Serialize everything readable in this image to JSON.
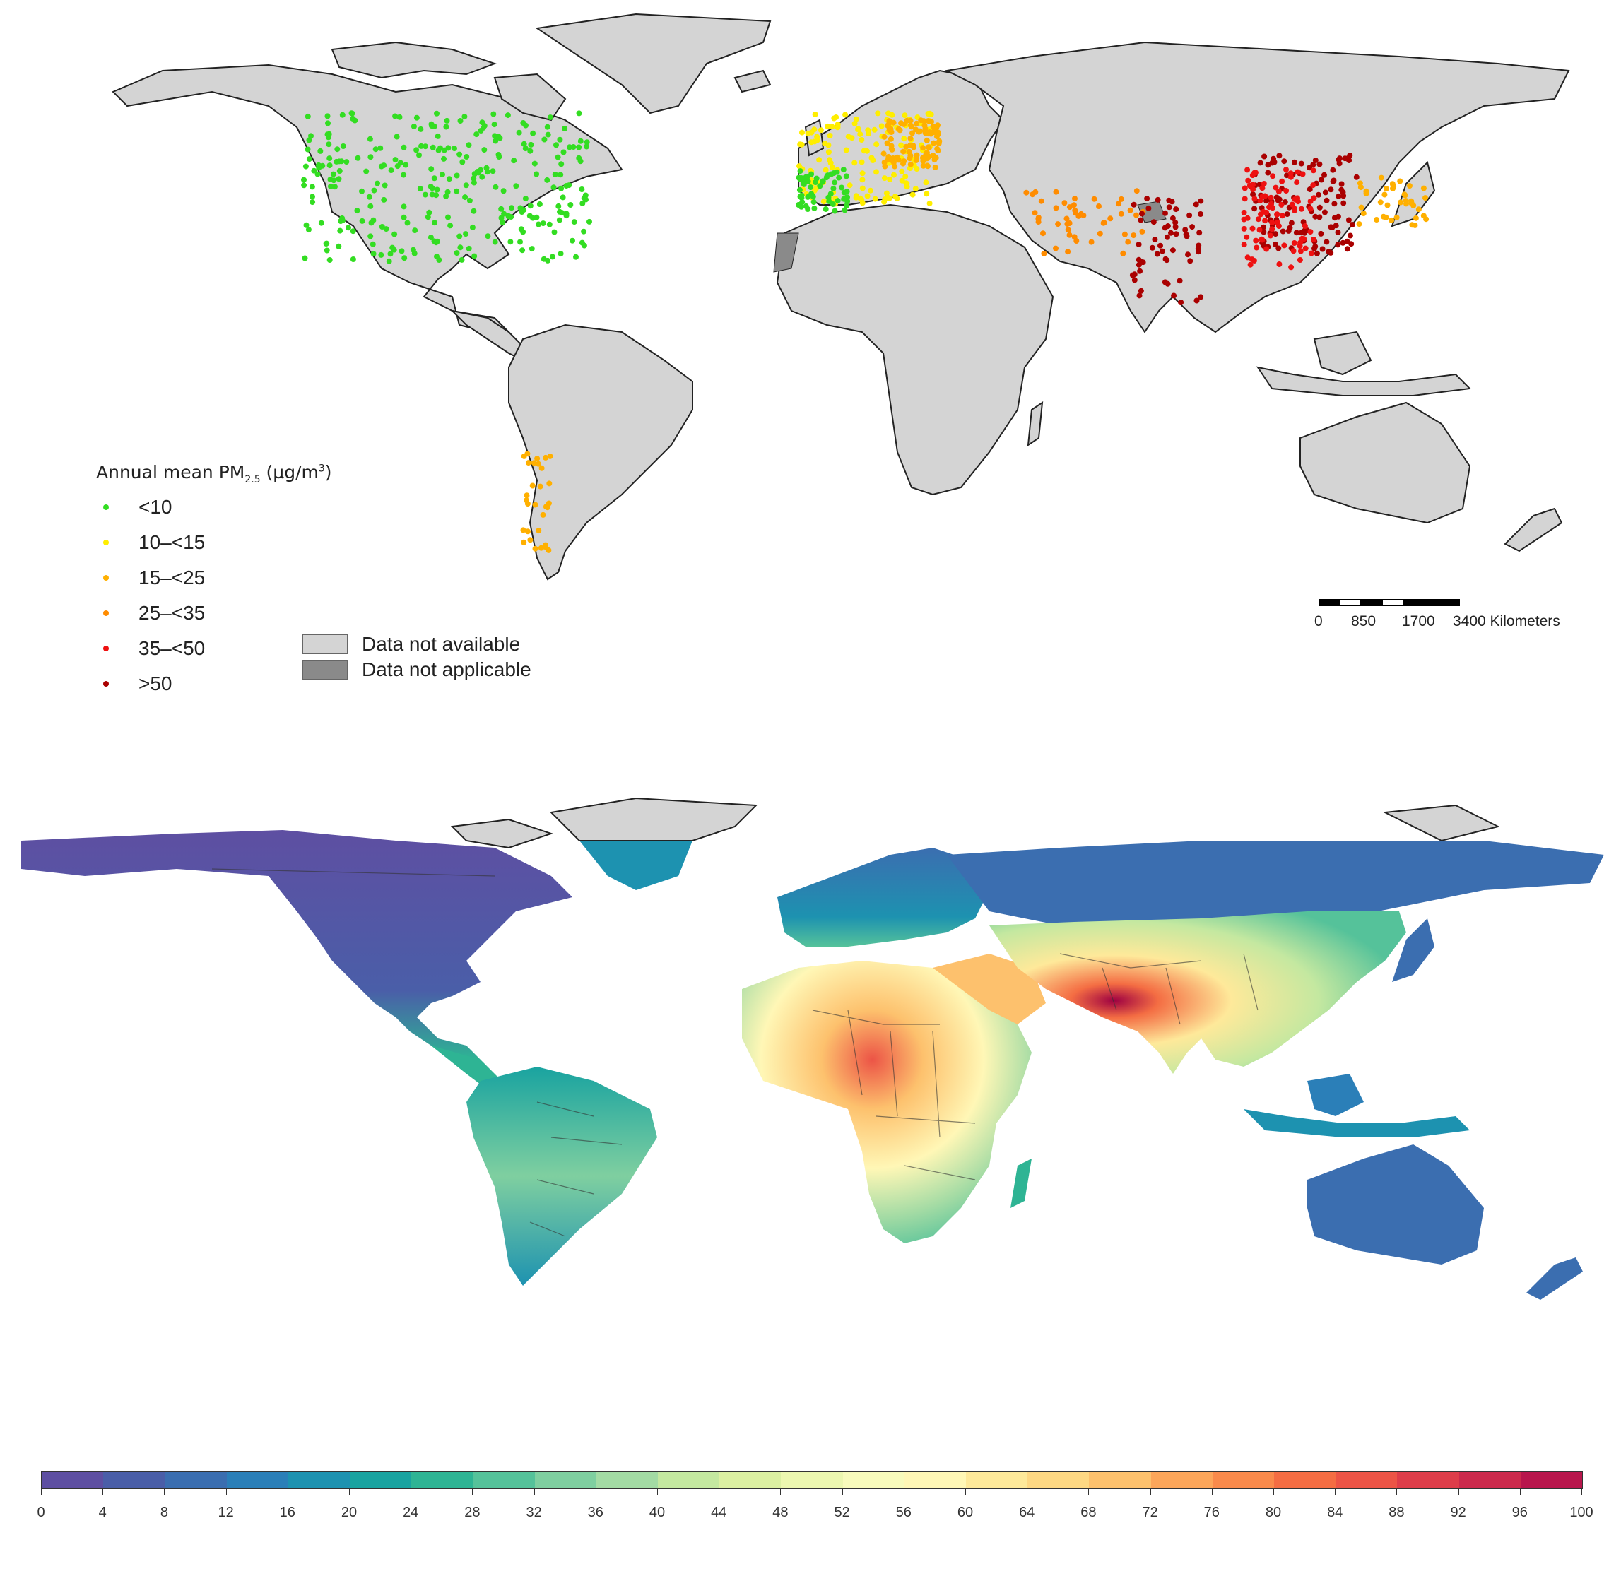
{
  "top_map": {
    "legend_title_main": "Annual mean PM",
    "legend_title_sub": "2.5",
    "legend_title_unit_pre": " (µg/m",
    "legend_title_unit_sup": "3",
    "legend_title_unit_post": ")",
    "categories": [
      {
        "label": "<10",
        "color": "#33dd22"
      },
      {
        "label": "10–<15",
        "color": "#ffee00"
      },
      {
        "label": "15–<25",
        "color": "#ffb000"
      },
      {
        "label": "25–<35",
        "color": "#ff8c00"
      },
      {
        "label": "35–<50",
        "color": "#ee1111"
      },
      {
        "label": ">50",
        "color": "#aa0000"
      }
    ],
    "na_legend": [
      {
        "label": "Data not available",
        "color": "#d4d4d4"
      },
      {
        "label": "Data not applicable",
        "color": "#8a8a8a"
      }
    ],
    "scale_labels": [
      "0",
      "850",
      "1700",
      "3400 Kilometers"
    ]
  },
  "bottom_map": {
    "colorbar_colors": [
      "#5e4fa2",
      "#4a5ea8",
      "#3b6eb0",
      "#2b7fb8",
      "#1d92b0",
      "#19a3a0",
      "#2eb494",
      "#55c29a",
      "#7fcfa0",
      "#a3dba4",
      "#c4e8a0",
      "#dcf0a2",
      "#ecf7b0",
      "#f8fbbc",
      "#fff7b6",
      "#fee99a",
      "#fed883",
      "#fdc16d",
      "#fca65a",
      "#f98a4b",
      "#f46d43",
      "#ec5446",
      "#de3d4a",
      "#cc2a4c",
      "#b8164c",
      "#9e0142"
    ],
    "colorbar_ticks": [
      "0",
      "4",
      "8",
      "12",
      "16",
      "20",
      "24",
      "28",
      "32",
      "36",
      "40",
      "44",
      "48",
      "52",
      "56",
      "60",
      "64",
      "68",
      "72",
      "76",
      "80",
      "84",
      "88",
      "92",
      "96",
      "100"
    ],
    "colorbar_range": [
      0,
      100
    ]
  }
}
